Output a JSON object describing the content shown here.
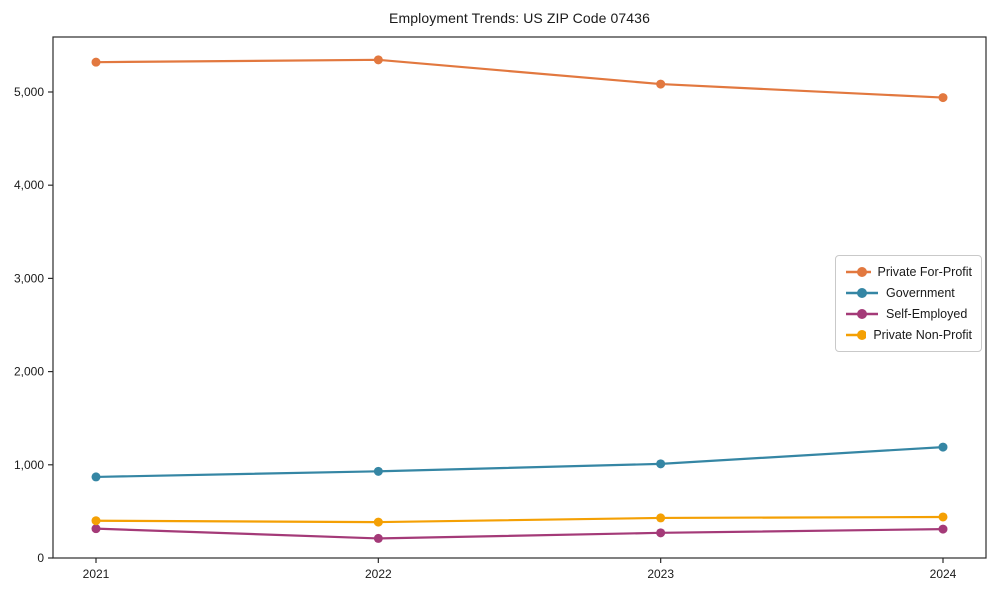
{
  "chart_data": {
    "type": "line",
    "title": "Employment Trends: US ZIP Code 07436",
    "categories": [
      "2021",
      "2022",
      "2023",
      "2024"
    ],
    "series": [
      {
        "name": "Private For-Profit",
        "color": "#E2783F",
        "values": [
          5320,
          5345,
          5085,
          4940
        ]
      },
      {
        "name": "Government",
        "color": "#3586A4",
        "values": [
          870,
          930,
          1010,
          1190
        ]
      },
      {
        "name": "Self-Employed",
        "color": "#A43A78",
        "values": [
          315,
          210,
          270,
          310
        ]
      },
      {
        "name": "Private Non-Profit",
        "color": "#F4A004",
        "values": [
          400,
          385,
          430,
          440
        ]
      }
    ],
    "xlabel": "",
    "ylabel": "",
    "ylim": [
      0,
      5590
    ],
    "yticks": [
      0,
      1000,
      2000,
      3000,
      4000,
      5000
    ],
    "ytick_labels": [
      "0",
      "1,000",
      "2,000",
      "3,000",
      "4,000",
      "5,000"
    ],
    "grid": false,
    "legend_position": "center-right",
    "marker": "circle",
    "axis_color": "#2b2b2b",
    "background": "#ffffff"
  }
}
